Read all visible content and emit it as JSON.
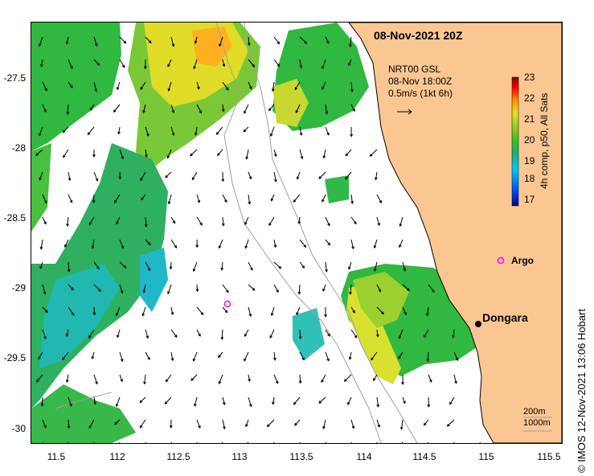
{
  "timestamp": "08-Nov-2021 20Z",
  "vector_legend": {
    "line1": "NRT00 GSL",
    "line2": "08-Nov 18:00Z",
    "line3": "0.5m/s (1kt 6h)"
  },
  "colorbar": {
    "title": "4h comp, p50, All Sats",
    "ticks": [
      "23",
      "22",
      "21",
      "20",
      "19",
      "18",
      "17"
    ],
    "range": [
      17,
      23
    ],
    "colors": [
      "#000080",
      "#0050ff",
      "#00c8ff",
      "#19b070",
      "#30c030",
      "#9ad020",
      "#e8e020",
      "#ff9000",
      "#ff0000",
      "#800000"
    ]
  },
  "axes": {
    "y_ticks": [
      "-27.5",
      "-28",
      "-28.5",
      "-29",
      "-29.5",
      "-30"
    ],
    "x_ticks": [
      "11.5",
      "112",
      "112.5",
      "113",
      "113.5",
      "114",
      "114.5",
      "115",
      "115.5"
    ]
  },
  "places": {
    "dongara": "Dongara",
    "argo_label": "Argo"
  },
  "depth_legend": {
    "line1": "200m",
    "line2": "1000m"
  },
  "credit": "© IMOS 12-Nov-2021 13:06 Hobart",
  "colors": {
    "land": "#fac792",
    "argo_marker": "#ff00ff",
    "bathymetry": "#a0a0a0"
  }
}
